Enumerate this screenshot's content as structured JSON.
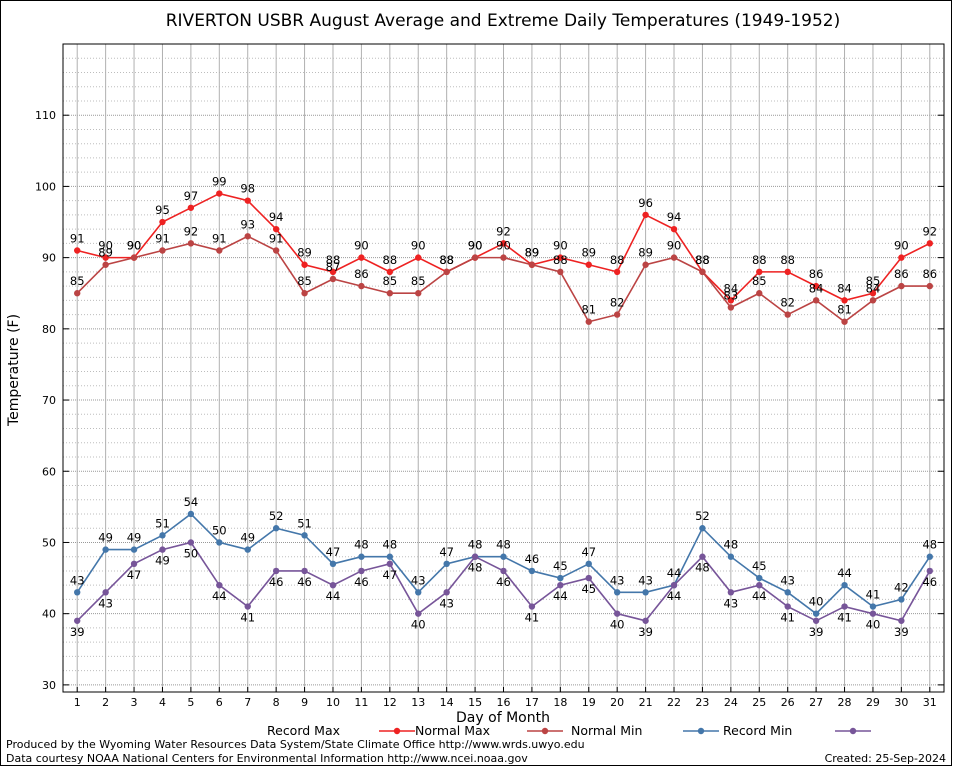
{
  "chart_data": {
    "type": "line",
    "title": "RIVERTON USBR August Average and Extreme Daily Temperatures (1949-1952)",
    "xlabel": "Day of Month",
    "ylabel": "Temperature (F)",
    "x": [
      1,
      2,
      3,
      4,
      5,
      6,
      7,
      8,
      9,
      10,
      11,
      12,
      13,
      14,
      15,
      16,
      17,
      18,
      19,
      20,
      21,
      22,
      23,
      24,
      25,
      26,
      27,
      28,
      29,
      30,
      31
    ],
    "xlim": [
      0.5,
      31.5
    ],
    "ylim": [
      29,
      120
    ],
    "yticks": [
      30,
      40,
      50,
      60,
      70,
      80,
      90,
      100,
      110
    ],
    "grid": true,
    "legend": "bottom",
    "series": [
      {
        "name": "Record Max",
        "color": "#ee2222",
        "label_pos": "above",
        "values": [
          91,
          90,
          90,
          95,
          97,
          99,
          98,
          94,
          89,
          88,
          90,
          88,
          90,
          88,
          90,
          92,
          89,
          90,
          89,
          88,
          96,
          94,
          88,
          84,
          88,
          88,
          86,
          84,
          85,
          90,
          92
        ]
      },
      {
        "name": "Normal Max",
        "color": "#bb4444",
        "label_pos": "above",
        "values": [
          85,
          89,
          90,
          91,
          92,
          91,
          93,
          91,
          85,
          87,
          86,
          85,
          85,
          88,
          90,
          90,
          89,
          88,
          81,
          82,
          89,
          90,
          88,
          83,
          85,
          82,
          84,
          81,
          84,
          86,
          86
        ]
      },
      {
        "name": "Normal Min",
        "color": "#4477aa",
        "label_pos": "above",
        "values": [
          43,
          49,
          49,
          51,
          54,
          50,
          49,
          52,
          51,
          47,
          48,
          48,
          43,
          47,
          48,
          48,
          46,
          45,
          47,
          43,
          43,
          44,
          52,
          48,
          45,
          43,
          40,
          44,
          41,
          42,
          48
        ]
      },
      {
        "name": "Record Min",
        "color": "#775599",
        "label_pos": "below",
        "values": [
          39,
          43,
          47,
          49,
          50,
          44,
          41,
          46,
          46,
          44,
          46,
          47,
          40,
          43,
          48,
          46,
          41,
          44,
          45,
          40,
          39,
          44,
          48,
          43,
          44,
          41,
          39,
          41,
          40,
          39,
          46
        ]
      }
    ]
  },
  "footer": {
    "produced_by": "Produced by the Wyoming Water Resources Data System/State Climate Office http://www.wrds.uwyo.edu",
    "courtesy": "Data courtesy NOAA National Centers for Environmental Information http://www.ncei.noaa.gov",
    "created": "Created: 25-Sep-2024"
  }
}
